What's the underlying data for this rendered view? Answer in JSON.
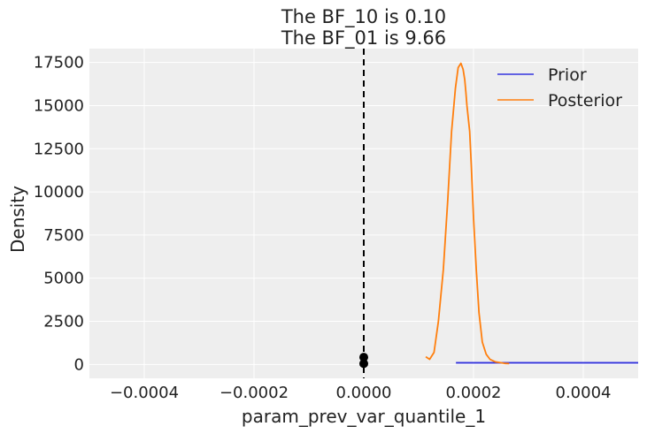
{
  "chart_data": {
    "type": "line",
    "title_lines": [
      "The BF_10 is 0.10",
      "The BF_01 is 9.66"
    ],
    "xlabel": "param_prev_var_quantile_1",
    "ylabel": "Density",
    "xlim": [
      -0.0005,
      0.0005
    ],
    "ylim": [
      -800,
      18300
    ],
    "x_ticks": [
      -0.0004,
      -0.0002,
      0.0,
      0.0002,
      0.0004
    ],
    "x_tick_labels": [
      "−0.0004",
      "−0.0002",
      "0.0000",
      "0.0002",
      "0.0004"
    ],
    "y_ticks": [
      0,
      2500,
      5000,
      7500,
      10000,
      12500,
      15000,
      17500
    ],
    "y_tick_labels": [
      "0",
      "2500",
      "5000",
      "7500",
      "10000",
      "12500",
      "15000",
      "17500"
    ],
    "grid": true,
    "legend_position": "top-right",
    "reference_line_x": 0.0,
    "series": [
      {
        "name": "Prior",
        "color": "#3333dd",
        "x": [
          0.000168,
          0.0005
        ],
        "y": [
          100,
          100
        ]
      },
      {
        "name": "Posterior",
        "color": "#ff7f0e",
        "x": [
          0.000113,
          0.00012,
          0.000128,
          0.000136,
          0.000145,
          0.000153,
          0.00016,
          0.000167,
          0.000172,
          0.000177,
          0.000181,
          0.000184,
          0.000186,
          0.000188,
          0.00019,
          0.000193,
          0.000196,
          0.0002,
          0.000205,
          0.00021,
          0.000216,
          0.000223,
          0.00023,
          0.00024,
          0.00025,
          0.000258,
          0.000265
        ],
        "y": [
          450,
          300,
          700,
          2500,
          5500,
          9500,
          13500,
          16000,
          17200,
          17450,
          17100,
          16500,
          15800,
          15000,
          14400,
          13500,
          11500,
          8500,
          5500,
          3000,
          1300,
          600,
          300,
          150,
          100,
          60,
          50
        ]
      }
    ],
    "points": [
      {
        "x": 0.0,
        "y": 50
      },
      {
        "x": 0.0,
        "y": 420
      }
    ]
  }
}
